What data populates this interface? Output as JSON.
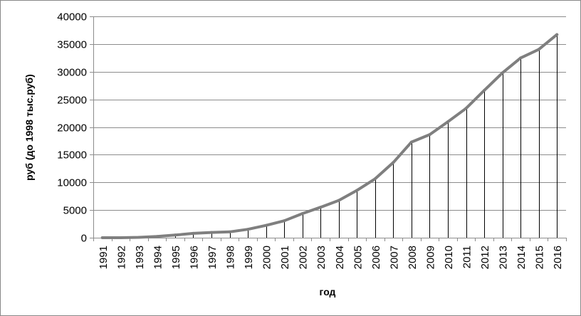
{
  "chart_data": {
    "type": "line",
    "title": "",
    "xlabel": "год",
    "ylabel": "руб (до 1998 тыс.руб)",
    "categories": [
      "1991",
      "1992",
      "1993",
      "1994",
      "1995",
      "1996",
      "1997",
      "1998",
      "1999",
      "2000",
      "2001",
      "2002",
      "2003",
      "2004",
      "2005",
      "2006",
      "2007",
      "2008",
      "2009",
      "2010",
      "2011",
      "2012",
      "2013",
      "2014",
      "2015",
      "2016"
    ],
    "series": [
      {
        "values": [
          0,
          6,
          58,
          220,
          472,
          790,
          951,
          1051,
          1523,
          2223,
          3062,
          4360,
          5499,
          6740,
          8554,
          10634,
          13593,
          17290,
          18638,
          20952,
          23369,
          26629,
          29792,
          32495,
          34030,
          36709
        ]
      }
    ],
    "ylim": [
      0,
      40000
    ],
    "yticks": [
      0,
      5000,
      10000,
      15000,
      20000,
      25000,
      30000,
      35000,
      40000
    ],
    "grid": true,
    "drop_lines": true,
    "line_color": "#7f7f7f",
    "grid_color": "#8c8c8c"
  }
}
